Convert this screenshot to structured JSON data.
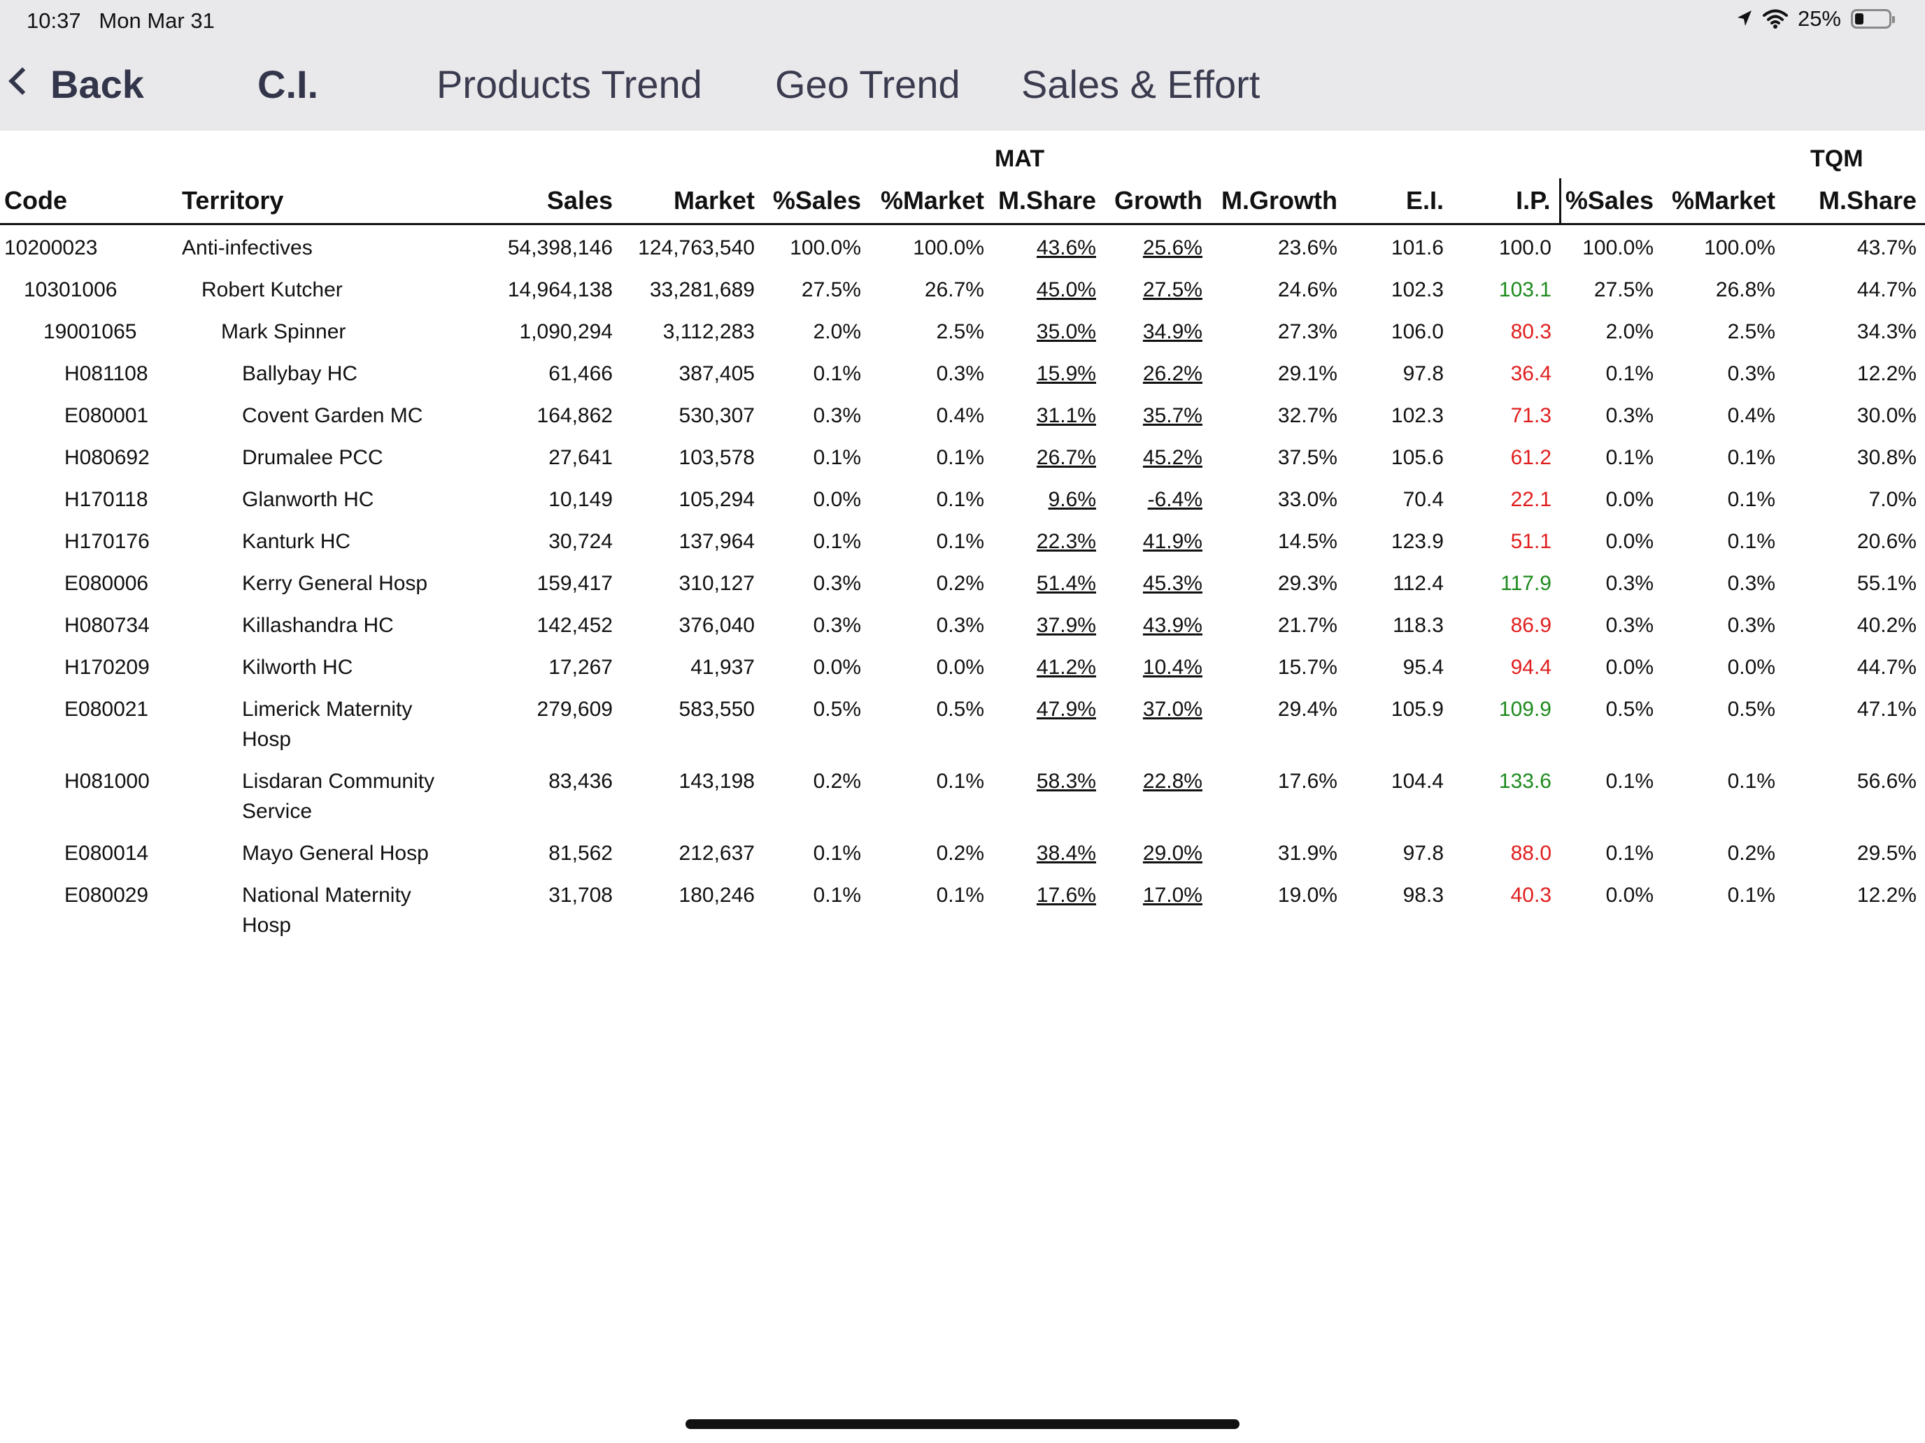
{
  "status": {
    "time": "10:37",
    "date": "Mon Mar 31",
    "battery_pct": "25%",
    "battery_level": 0.25
  },
  "nav": {
    "back_label": "Back",
    "tabs": [
      "C.I.",
      "Products Trend",
      "Geo Trend",
      "Sales & Effort"
    ]
  },
  "table": {
    "group_mat": "MAT",
    "group_tqm": "TQM",
    "columns": [
      "Code",
      "Territory",
      "Sales",
      "Market",
      "%Sales",
      "%Market",
      "M.Share",
      "Growth",
      "M.Growth",
      "E.I.",
      "I.P.",
      "%Sales",
      "%Market",
      "M.Share"
    ],
    "rows": [
      {
        "indent": 0,
        "code": "10200023",
        "territory": "Anti-infectives",
        "sales": "54,398,146",
        "market": "124,763,540",
        "pct_sales": "100.0%",
        "pct_market": "100.0%",
        "mshare": "43.6%",
        "growth": "25.6%",
        "mgrowth": "23.6%",
        "ei": "101.6",
        "ip": "100.0",
        "ip_color": "black",
        "tqm_pct_sales": "100.0%",
        "tqm_pct_market": "100.0%",
        "tqm_mshare": "43.7%"
      },
      {
        "indent": 1,
        "code": "10301006",
        "territory": "Robert Kutcher",
        "sales": "14,964,138",
        "market": "33,281,689",
        "pct_sales": "27.5%",
        "pct_market": "26.7%",
        "mshare": "45.0%",
        "growth": "27.5%",
        "mgrowth": "24.6%",
        "ei": "102.3",
        "ip": "103.1",
        "ip_color": "green",
        "tqm_pct_sales": "27.5%",
        "tqm_pct_market": "26.8%",
        "tqm_mshare": "44.7%"
      },
      {
        "indent": 2,
        "code": "19001065",
        "territory": "Mark Spinner",
        "sales": "1,090,294",
        "market": "3,112,283",
        "pct_sales": "2.0%",
        "pct_market": "2.5%",
        "mshare": "35.0%",
        "growth": "34.9%",
        "mgrowth": "27.3%",
        "ei": "106.0",
        "ip": "80.3",
        "ip_color": "red",
        "tqm_pct_sales": "2.0%",
        "tqm_pct_market": "2.5%",
        "tqm_mshare": "34.3%"
      },
      {
        "indent": 3,
        "code": "H081108",
        "territory": "Ballybay HC",
        "sales": "61,466",
        "market": "387,405",
        "pct_sales": "0.1%",
        "pct_market": "0.3%",
        "mshare": "15.9%",
        "growth": "26.2%",
        "mgrowth": "29.1%",
        "ei": "97.8",
        "ip": "36.4",
        "ip_color": "red",
        "tqm_pct_sales": "0.1%",
        "tqm_pct_market": "0.3%",
        "tqm_mshare": "12.2%"
      },
      {
        "indent": 3,
        "code": "E080001",
        "territory": "Covent Garden MC",
        "sales": "164,862",
        "market": "530,307",
        "pct_sales": "0.3%",
        "pct_market": "0.4%",
        "mshare": "31.1%",
        "growth": "35.7%",
        "mgrowth": "32.7%",
        "ei": "102.3",
        "ip": "71.3",
        "ip_color": "red",
        "tqm_pct_sales": "0.3%",
        "tqm_pct_market": "0.4%",
        "tqm_mshare": "30.0%"
      },
      {
        "indent": 3,
        "code": "H080692",
        "territory": "Drumalee PCC",
        "sales": "27,641",
        "market": "103,578",
        "pct_sales": "0.1%",
        "pct_market": "0.1%",
        "mshare": "26.7%",
        "growth": "45.2%",
        "mgrowth": "37.5%",
        "ei": "105.6",
        "ip": "61.2",
        "ip_color": "red",
        "tqm_pct_sales": "0.1%",
        "tqm_pct_market": "0.1%",
        "tqm_mshare": "30.8%"
      },
      {
        "indent": 3,
        "code": "H170118",
        "territory": "Glanworth HC",
        "sales": "10,149",
        "market": "105,294",
        "pct_sales": "0.0%",
        "pct_market": "0.1%",
        "mshare": "9.6%",
        "growth": "-6.4%",
        "mgrowth": "33.0%",
        "ei": "70.4",
        "ip": "22.1",
        "ip_color": "red",
        "tqm_pct_sales": "0.0%",
        "tqm_pct_market": "0.1%",
        "tqm_mshare": "7.0%"
      },
      {
        "indent": 3,
        "code": "H170176",
        "territory": "Kanturk HC",
        "sales": "30,724",
        "market": "137,964",
        "pct_sales": "0.1%",
        "pct_market": "0.1%",
        "mshare": "22.3%",
        "growth": "41.9%",
        "mgrowth": "14.5%",
        "ei": "123.9",
        "ip": "51.1",
        "ip_color": "red",
        "tqm_pct_sales": "0.0%",
        "tqm_pct_market": "0.1%",
        "tqm_mshare": "20.6%"
      },
      {
        "indent": 3,
        "code": "E080006",
        "territory": "Kerry General Hosp",
        "sales": "159,417",
        "market": "310,127",
        "pct_sales": "0.3%",
        "pct_market": "0.2%",
        "mshare": "51.4%",
        "growth": "45.3%",
        "mgrowth": "29.3%",
        "ei": "112.4",
        "ip": "117.9",
        "ip_color": "green",
        "tqm_pct_sales": "0.3%",
        "tqm_pct_market": "0.3%",
        "tqm_mshare": "55.1%"
      },
      {
        "indent": 3,
        "code": "H080734",
        "territory": "Killashandra HC",
        "sales": "142,452",
        "market": "376,040",
        "pct_sales": "0.3%",
        "pct_market": "0.3%",
        "mshare": "37.9%",
        "growth": "43.9%",
        "mgrowth": "21.7%",
        "ei": "118.3",
        "ip": "86.9",
        "ip_color": "red",
        "tqm_pct_sales": "0.3%",
        "tqm_pct_market": "0.3%",
        "tqm_mshare": "40.2%"
      },
      {
        "indent": 3,
        "code": "H170209",
        "territory": "Kilworth HC",
        "sales": "17,267",
        "market": "41,937",
        "pct_sales": "0.0%",
        "pct_market": "0.0%",
        "mshare": "41.2%",
        "growth": "10.4%",
        "mgrowth": "15.7%",
        "ei": "95.4",
        "ip": "94.4",
        "ip_color": "red",
        "tqm_pct_sales": "0.0%",
        "tqm_pct_market": "0.0%",
        "tqm_mshare": "44.7%"
      },
      {
        "indent": 3,
        "code": "E080021",
        "territory": "Limerick Maternity Hosp",
        "sales": "279,609",
        "market": "583,550",
        "pct_sales": "0.5%",
        "pct_market": "0.5%",
        "mshare": "47.9%",
        "growth": "37.0%",
        "mgrowth": "29.4%",
        "ei": "105.9",
        "ip": "109.9",
        "ip_color": "green",
        "tqm_pct_sales": "0.5%",
        "tqm_pct_market": "0.5%",
        "tqm_mshare": "47.1%"
      },
      {
        "indent": 3,
        "code": "H081000",
        "territory": "Lisdaran Community Service",
        "sales": "83,436",
        "market": "143,198",
        "pct_sales": "0.2%",
        "pct_market": "0.1%",
        "mshare": "58.3%",
        "growth": "22.8%",
        "mgrowth": "17.6%",
        "ei": "104.4",
        "ip": "133.6",
        "ip_color": "green",
        "tqm_pct_sales": "0.1%",
        "tqm_pct_market": "0.1%",
        "tqm_mshare": "56.6%"
      },
      {
        "indent": 3,
        "code": "E080014",
        "territory": "Mayo General Hosp",
        "sales": "81,562",
        "market": "212,637",
        "pct_sales": "0.1%",
        "pct_market": "0.2%",
        "mshare": "38.4%",
        "growth": "29.0%",
        "mgrowth": "31.9%",
        "ei": "97.8",
        "ip": "88.0",
        "ip_color": "red",
        "tqm_pct_sales": "0.1%",
        "tqm_pct_market": "0.2%",
        "tqm_mshare": "29.5%"
      },
      {
        "indent": 3,
        "code": "E080029",
        "territory": "National Maternity Hosp",
        "sales": "31,708",
        "market": "180,246",
        "pct_sales": "0.1%",
        "pct_market": "0.1%",
        "mshare": "17.6%",
        "growth": "17.0%",
        "mgrowth": "19.0%",
        "ei": "98.3",
        "ip": "40.3",
        "ip_color": "red",
        "tqm_pct_sales": "0.0%",
        "tqm_pct_market": "0.1%",
        "tqm_mshare": "12.2%"
      }
    ]
  }
}
